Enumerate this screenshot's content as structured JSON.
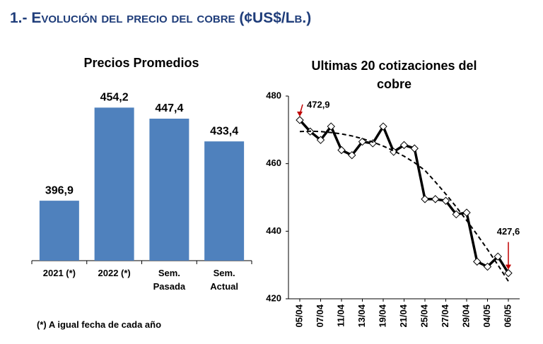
{
  "header": {
    "title": "1.- Evolución del precio del cobre (¢US$/Lb.)",
    "footnote": "(*) A igual fecha de cada año"
  },
  "chart_data": [
    {
      "type": "bar",
      "title": "Precios Promedios",
      "categories": [
        "2021 (*)",
        "2022 (*)",
        "Sem. Pasada",
        "Sem. Actual"
      ],
      "values": [
        396.9,
        454.2,
        447.4,
        433.4
      ],
      "value_labels": [
        "396,9",
        "454,2",
        "447,4",
        "433,4"
      ],
      "color": "#4f81bd",
      "ylim": [
        360,
        470
      ]
    },
    {
      "type": "line",
      "title": "Ultimas 20 cotizaciones del cobre",
      "categories": [
        "05/04",
        null,
        "07/04",
        null,
        "11/04",
        null,
        "13/04",
        null,
        "19/04",
        null,
        "21/04",
        null,
        "25/04",
        null,
        "27/04",
        null,
        "29/04",
        null,
        "04/05",
        null,
        "06/05"
      ],
      "ylim": [
        420,
        480
      ],
      "yticks": [
        420,
        440,
        460,
        480
      ],
      "grid": false,
      "series": [
        {
          "color": "#000000",
          "values": [
            472.9,
            469.5,
            467,
            471,
            464,
            462.5,
            466.5,
            466,
            471,
            463.5,
            465.5,
            464.5,
            449.5,
            449.5,
            449,
            445,
            445.5,
            431,
            429.5,
            432.5,
            427.6
          ],
          "value_labels": [
            "472,9",
            null,
            null,
            null,
            null,
            null,
            null,
            null,
            null,
            null,
            null,
            null,
            null,
            null,
            null,
            null,
            null,
            null,
            null,
            null,
            "427,6"
          ],
          "markers": true,
          "label_color": "#c00000"
        },
        {
          "color": "#000000",
          "dashed": true,
          "values": [
            469.5,
            469.6,
            469.5,
            469.2,
            468.8,
            468.2,
            467.4,
            466.4,
            465.2,
            463.8,
            462.2,
            460.3,
            458.0,
            454.6,
            451.0,
            447.2,
            443.2,
            439.0,
            434.6,
            430.0,
            425.2
          ]
        }
      ]
    }
  ]
}
